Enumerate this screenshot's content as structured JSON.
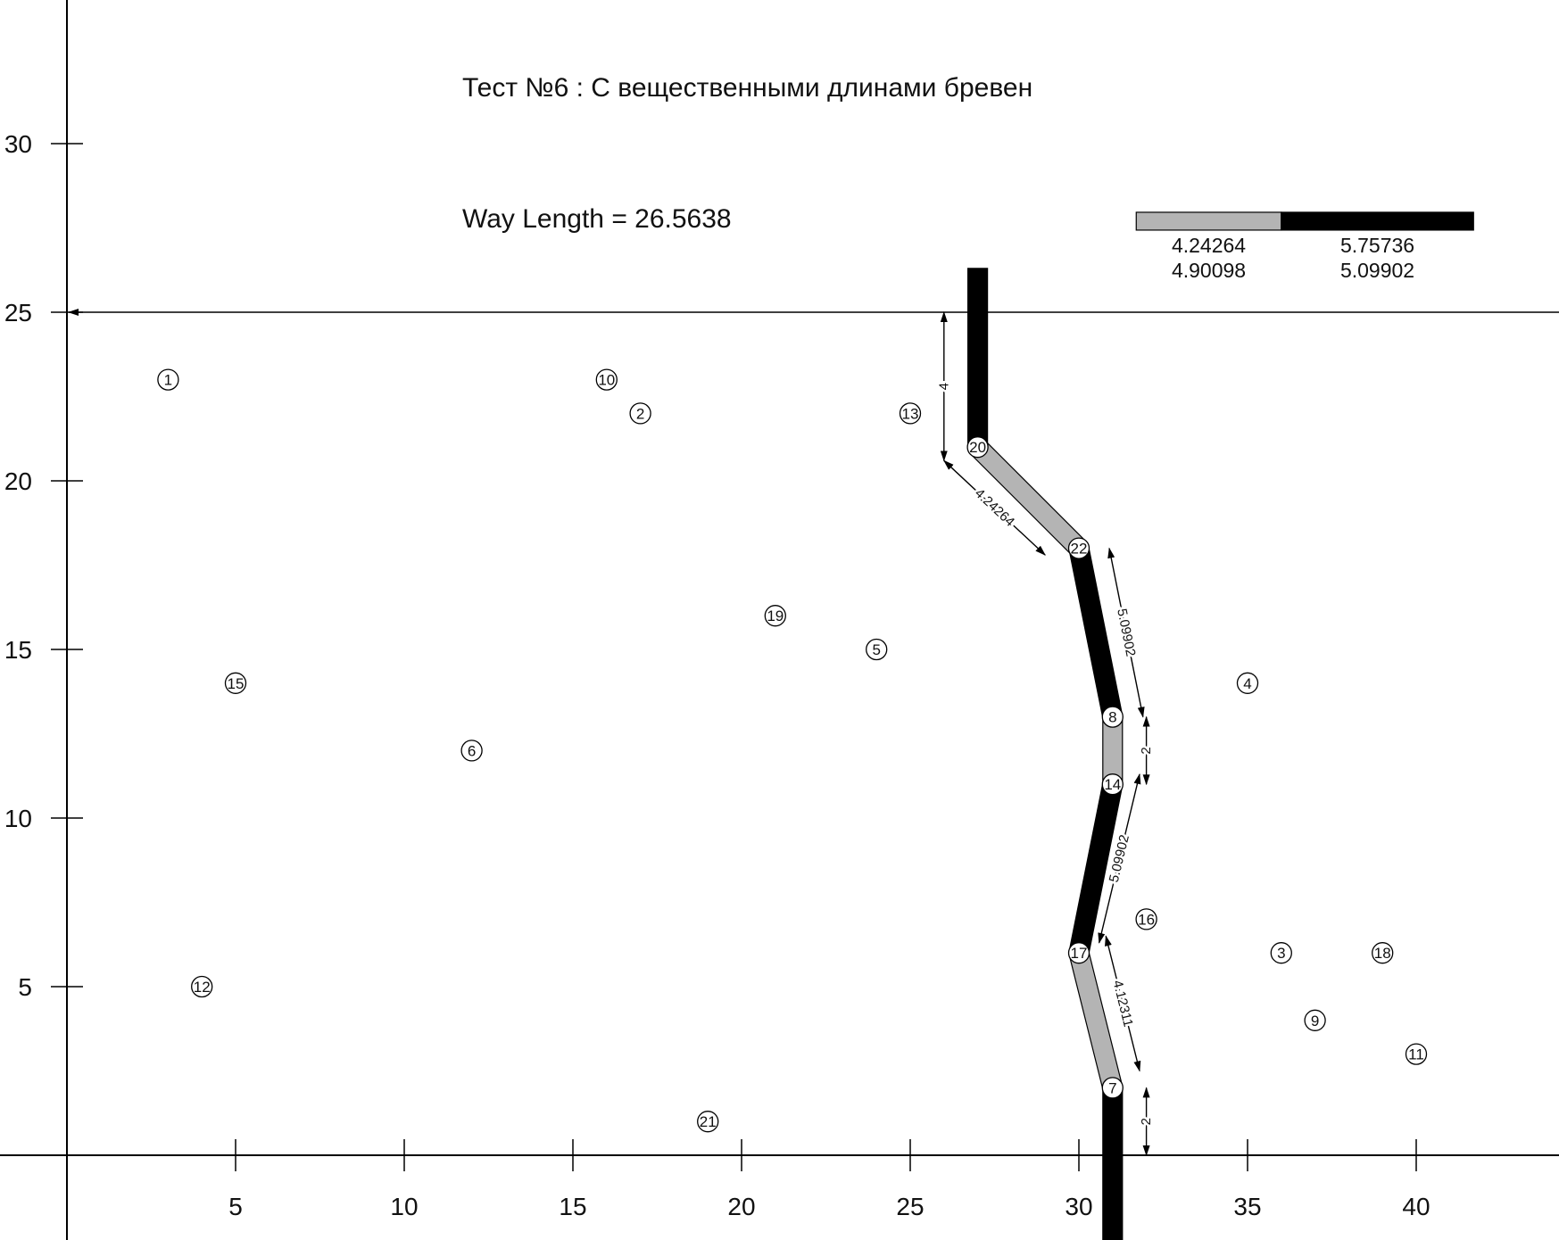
{
  "chart_data": {
    "type": "scatter",
    "title": "Тест №6 : С вещественными длинами бревен",
    "subtitle": "Way Length = 26.5638",
    "xlim": [
      0,
      44.5
    ],
    "ylim": [
      -2.5,
      34.5
    ],
    "x_ticks": [
      5,
      10,
      15,
      20,
      25,
      30,
      35,
      40
    ],
    "y_ticks": [
      5,
      10,
      15,
      20,
      25,
      30
    ],
    "grid": false,
    "river_bank_y": 25,
    "points": [
      {
        "id": "1",
        "x": 3,
        "y": 23
      },
      {
        "id": "2",
        "x": 17,
        "y": 22
      },
      {
        "id": "3",
        "x": 36,
        "y": 6
      },
      {
        "id": "4",
        "x": 35,
        "y": 14
      },
      {
        "id": "5",
        "x": 24,
        "y": 15
      },
      {
        "id": "6",
        "x": 12,
        "y": 12
      },
      {
        "id": "7",
        "x": 31,
        "y": 2
      },
      {
        "id": "8",
        "x": 31,
        "y": 13
      },
      {
        "id": "9",
        "x": 37,
        "y": 4
      },
      {
        "id": "10",
        "x": 16,
        "y": 23
      },
      {
        "id": "11",
        "x": 40,
        "y": 3
      },
      {
        "id": "12",
        "x": 4,
        "y": 5
      },
      {
        "id": "13",
        "x": 25,
        "y": 22
      },
      {
        "id": "14",
        "x": 31,
        "y": 11
      },
      {
        "id": "15",
        "x": 5,
        "y": 14
      },
      {
        "id": "16",
        "x": 32,
        "y": 7
      },
      {
        "id": "17",
        "x": 30,
        "y": 6
      },
      {
        "id": "18",
        "x": 39,
        "y": 6
      },
      {
        "id": "19",
        "x": 21,
        "y": 16
      },
      {
        "id": "20",
        "x": 27,
        "y": 21
      },
      {
        "id": "21",
        "x": 19,
        "y": 1
      },
      {
        "id": "22",
        "x": 30,
        "y": 18
      }
    ],
    "path": [
      {
        "from": [
          31,
          2
        ],
        "to": [
          31,
          -2.5
        ],
        "color": "#000000"
      },
      {
        "from": [
          31,
          2
        ],
        "to": [
          30,
          6
        ],
        "color": "#b4b4b4"
      },
      {
        "from": [
          30,
          6
        ],
        "to": [
          31,
          11
        ],
        "color": "#000000"
      },
      {
        "from": [
          31,
          11
        ],
        "to": [
          31,
          13
        ],
        "color": "#b4b4b4"
      },
      {
        "from": [
          31,
          13
        ],
        "to": [
          30,
          18
        ],
        "color": "#000000"
      },
      {
        "from": [
          30,
          18
        ],
        "to": [
          27,
          21
        ],
        "color": "#b4b4b4"
      },
      {
        "from": [
          27,
          21
        ],
        "to": [
          27,
          26.3
        ],
        "color": "#000000"
      }
    ],
    "dimensions": [
      {
        "label": "2",
        "from": [
          32,
          0
        ],
        "to": [
          32,
          2
        ]
      },
      {
        "label": "4.12311",
        "from": [
          31.8,
          2.5
        ],
        "to": [
          30.8,
          6.5
        ]
      },
      {
        "label": "5.09902",
        "from": [
          30.6,
          6.3
        ],
        "to": [
          31.8,
          11.3
        ]
      },
      {
        "label": "2",
        "from": [
          32,
          11
        ],
        "to": [
          32,
          13
        ]
      },
      {
        "label": "5.09902",
        "from": [
          31.9,
          13
        ],
        "to": [
          30.9,
          18
        ]
      },
      {
        "label": "4.24264",
        "from": [
          29,
          17.8
        ],
        "to": [
          26,
          20.6
        ]
      },
      {
        "label": "4",
        "from": [
          26,
          20.6
        ],
        "to": [
          26,
          25
        ]
      }
    ],
    "legend": {
      "placement": "top-right",
      "y": 27.7,
      "blocks": [
        {
          "x_from": 31.7,
          "x_to": 36,
          "color": "#b4b4b4",
          "labels": [
            "4.24264",
            "4.90098"
          ]
        },
        {
          "x_from": 36,
          "x_to": 41.7,
          "color": "#000000",
          "labels": [
            "5.75736",
            "5.09902"
          ]
        }
      ]
    },
    "colors": {
      "axis": "#000000",
      "short_log": "#b4b4b4",
      "long_log": "#000000"
    }
  }
}
